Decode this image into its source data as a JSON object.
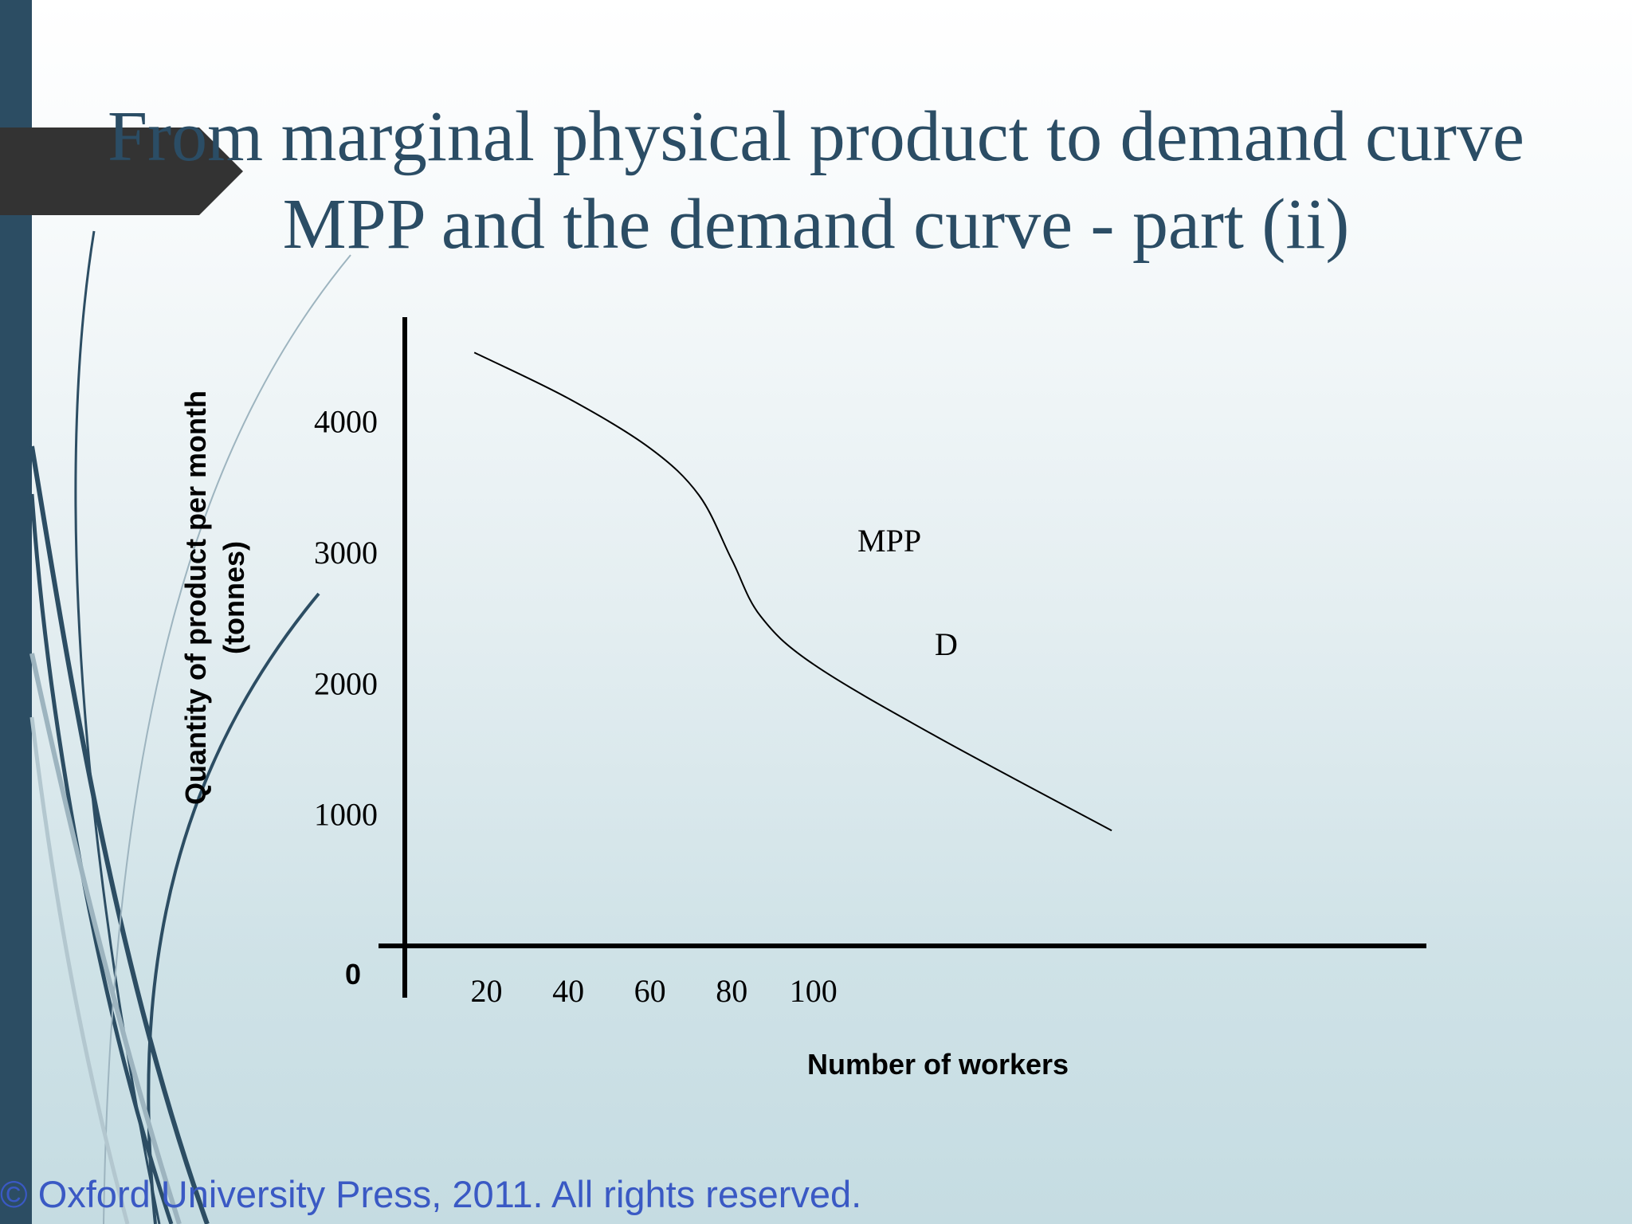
{
  "slide": {
    "title_line_1": "From marginal physical product to demand curve",
    "title_line_2": "MPP and the demand curve - part (ii)",
    "copyright": "© Oxford University Press, 2011. All rights reserved.",
    "colors": {
      "title": "#2b4d65",
      "accent_bar": "#2c4d63",
      "tab": "#333333",
      "copyright": "#3a59c4"
    }
  },
  "chart_data": {
    "type": "line",
    "title": "",
    "xlabel": "Number of workers",
    "ylabel_line_1": "Quantity of product per month",
    "ylabel_line_2": "(tonnes)",
    "origin_label": "0",
    "x_ticks": [
      "20",
      "40",
      "60",
      "80",
      "100"
    ],
    "x_tick_values": [
      20,
      40,
      60,
      80,
      100
    ],
    "y_ticks": [
      "1000",
      "2000",
      "3000",
      "4000"
    ],
    "y_tick_values": [
      1000,
      2000,
      3000,
      4000
    ],
    "xlim": [
      0,
      250
    ],
    "ylim": [
      0,
      4800
    ],
    "grid": false,
    "series": [
      {
        "name": "MPP",
        "label_2": "D",
        "x": [
          17,
          40,
          60,
          72,
          80,
          87,
          100,
          130,
          173
        ],
        "y": [
          4530,
          4180,
          3800,
          3440,
          2950,
          2520,
          2150,
          1600,
          880
        ]
      }
    ]
  }
}
